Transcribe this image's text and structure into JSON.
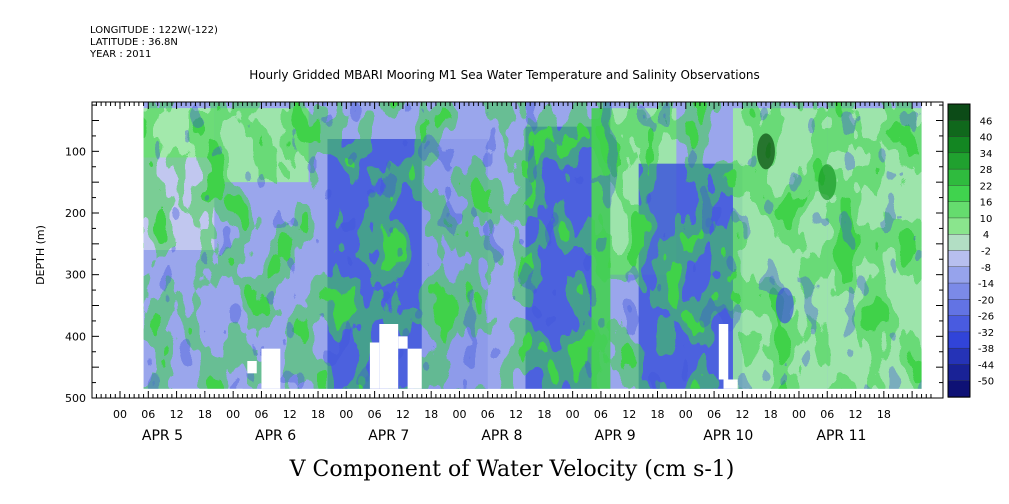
{
  "header": {
    "longitude": "LONGITUDE : 122W(-122)",
    "latitude": "LATITUDE : 36.8N",
    "year": "YEAR : 2011"
  },
  "chart_data": {
    "type": "heatmap",
    "title": "Hourly Gridded MBARI Mooring M1 Sea Water Temperature and Salinity Observations",
    "xlabel": "V Component of Water Velocity (cm s-1)",
    "ylabel": "DEPTH (m)",
    "ylim": [
      500,
      20
    ],
    "yticks": [
      100,
      200,
      300,
      400,
      500
    ],
    "x_hour_ticks": [
      "00",
      "06",
      "12",
      "18",
      "00",
      "06",
      "12",
      "18",
      "00",
      "06",
      "12",
      "18",
      "00",
      "06",
      "12",
      "18",
      "00",
      "06",
      "12",
      "18",
      "00",
      "06",
      "12",
      "18",
      "00",
      "06",
      "12",
      "18"
    ],
    "x_day_labels": [
      "APR  5",
      "APR  6",
      "APR  7",
      "APR  8",
      "APR  9",
      "APR 10",
      "APR 11"
    ],
    "colorbar": {
      "labels": [
        "46",
        "40",
        "34",
        "28",
        "22",
        "16",
        "10",
        "4",
        "-2",
        "-8",
        "-14",
        "-20",
        "-26",
        "-32",
        "-38",
        "-44",
        "-50"
      ],
      "range": [
        -50,
        50
      ]
    },
    "data_extent_hours": [
      5,
      170
    ],
    "data_depth_range": [
      20,
      485
    ],
    "colors": {
      "strong_positive": "#0a4a10",
      "positive": "#3fd24a",
      "weak_positive": "#9eeea0",
      "near_zero": "#c8ccf0",
      "weak_negative": "#9aa6ec",
      "negative": "#3e55dc",
      "strong_negative": "#0a0a6e"
    }
  }
}
